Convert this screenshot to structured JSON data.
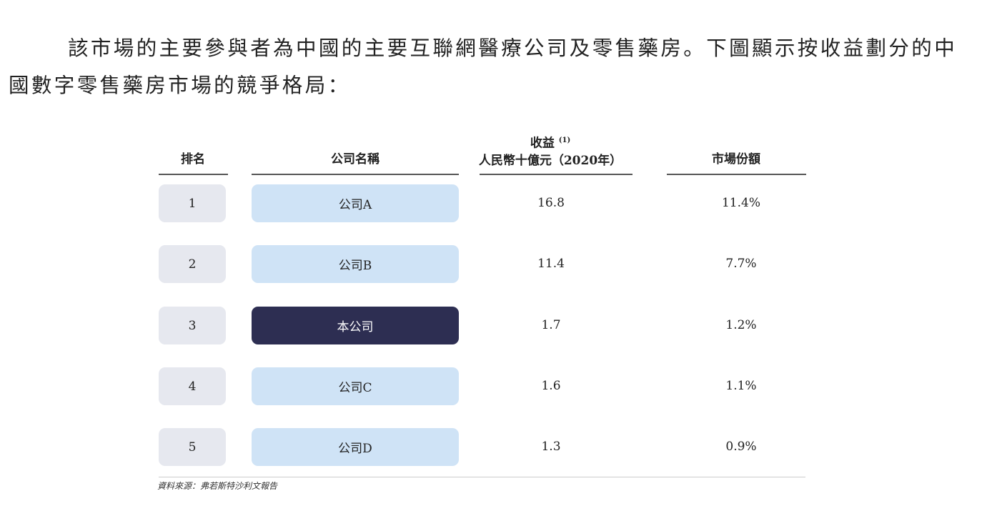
{
  "paragraph": "該市場的主要參與者為中國的主要互聯網醫療公司及零售藥房。下圖顯示按收益劃分的中國數字零售藥房市場的競爭格局：",
  "table": {
    "headers": {
      "rank": "排名",
      "company": "公司名稱",
      "revenue_line1": "收益",
      "revenue_note": "(1)",
      "revenue_line2": "人民幣十億元（2020年）",
      "share": "市場份額"
    },
    "rows": [
      {
        "rank": "1",
        "company": "公司A",
        "revenue": "16.8",
        "share": "11.4%",
        "highlight": false
      },
      {
        "rank": "2",
        "company": "公司B",
        "revenue": "11.4",
        "share": "7.7%",
        "highlight": false
      },
      {
        "rank": "3",
        "company": "本公司",
        "revenue": "1.7",
        "share": "1.2%",
        "highlight": true
      },
      {
        "rank": "4",
        "company": "公司C",
        "revenue": "1.6",
        "share": "1.1%",
        "highlight": false
      },
      {
        "rank": "5",
        "company": "公司D",
        "revenue": "1.3",
        "share": "0.9%",
        "highlight": false
      }
    ],
    "colors": {
      "rank_bg": "#e6e8ef",
      "company_bg": "#cfe3f6",
      "highlight_bg": "#2d2e52"
    }
  },
  "source": "資料來源：弗若斯特沙利文報告"
}
